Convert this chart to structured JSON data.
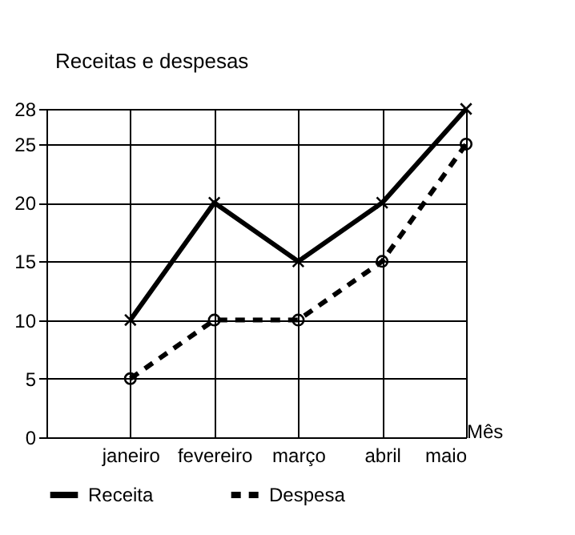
{
  "chart_data": {
    "type": "line",
    "xlabel": "Mês",
    "ylabel": "Receitas e despesas",
    "categories": [
      "janeiro",
      "fevereiro",
      "março",
      "abril",
      "maio"
    ],
    "series": [
      {
        "name": "Receita",
        "color": "#000000",
        "values": [
          10,
          20,
          15,
          20,
          28
        ],
        "marker": "cross",
        "line_style": "solid"
      },
      {
        "name": "Despesa",
        "color": "#000000",
        "values": [
          5,
          10,
          10,
          15,
          25
        ],
        "marker": "circle",
        "line_style": "dashed"
      }
    ],
    "ylim": [
      0,
      28
    ],
    "yticks": [
      0,
      5,
      10,
      15,
      20,
      25,
      28
    ],
    "grid": true,
    "legend": "bottom"
  }
}
